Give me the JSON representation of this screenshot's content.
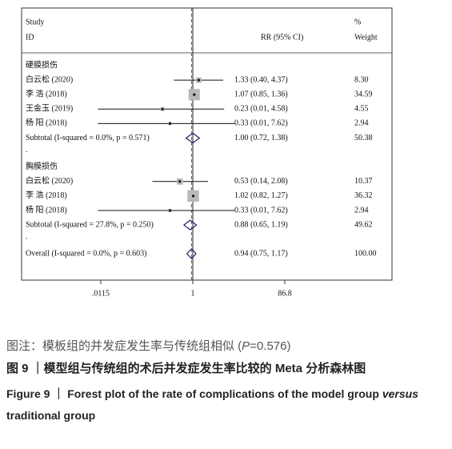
{
  "chart_data": {
    "type": "forest",
    "header": {
      "study": "Study",
      "id": "ID",
      "effect": "RR (95% CI)",
      "pct": "%",
      "weight": "Weight"
    },
    "groups": [
      {
        "title": "硬膜损伤",
        "studies": [
          {
            "label": "白云松 (2020)",
            "rr": 1.33,
            "lo": 0.4,
            "hi": 4.37,
            "ci_label": "1.33 (0.40, 4.37)",
            "weight": 8.3,
            "weight_label": "8.30"
          },
          {
            "label": "李 浩 (2018)",
            "rr": 1.07,
            "lo": 0.85,
            "hi": 1.36,
            "ci_label": "1.07 (0.85, 1.36)",
            "weight": 34.59,
            "weight_label": "34.59"
          },
          {
            "label": "王金玉 (2019)",
            "rr": 0.23,
            "lo": 0.01,
            "hi": 4.58,
            "ci_label": "0.23 (0.01, 4.58)",
            "weight": 4.55,
            "weight_label": "4.55"
          },
          {
            "label": "杨 阳 (2018)",
            "rr": 0.33,
            "lo": 0.01,
            "hi": 7.62,
            "ci_label": "0.33 (0.01, 7.62)",
            "weight": 2.94,
            "weight_label": "2.94"
          }
        ],
        "subtotal": {
          "label": "Subtotal  (I-squared = 0.0%, p = 0.571)",
          "rr": 1.0,
          "lo": 0.72,
          "hi": 1.38,
          "ci_label": "1.00 (0.72, 1.38)",
          "weight": 50.38,
          "weight_label": "50.38"
        },
        "separator": "."
      },
      {
        "title": "胸膜损伤",
        "studies": [
          {
            "label": "白云松 (2020)",
            "rr": 0.53,
            "lo": 0.14,
            "hi": 2.08,
            "ci_label": "0.53 (0.14, 2.08)",
            "weight": 10.37,
            "weight_label": "10.37"
          },
          {
            "label": "李 浩 (2018)",
            "rr": 1.02,
            "lo": 0.82,
            "hi": 1.27,
            "ci_label": "1.02 (0.82, 1.27)",
            "weight": 36.32,
            "weight_label": "36.32"
          },
          {
            "label": "杨 阳 (2018)",
            "rr": 0.33,
            "lo": 0.01,
            "hi": 7.62,
            "ci_label": "0.33 (0.01, 7.62)",
            "weight": 2.94,
            "weight_label": "2.94"
          }
        ],
        "subtotal": {
          "label": "Subtotal  (I-squared = 27.8%, p = 0.250)",
          "rr": 0.88,
          "lo": 0.65,
          "hi": 1.19,
          "ci_label": "0.88 (0.65, 1.19)",
          "weight": 49.62,
          "weight_label": "49.62"
        },
        "separator": "."
      }
    ],
    "overall": {
      "label": "Overall  (I-squared = 0.0%, p = 0.603)",
      "rr": 0.94,
      "lo": 0.75,
      "hi": 1.17,
      "ci_label": "0.94 (0.75, 1.17)",
      "weight": 100,
      "weight_label": "100.00"
    },
    "xlim": [
      0.0115,
      86.8
    ],
    "xticks": [
      {
        "value": 0.0115,
        "label": ".0115"
      },
      1,
      86.8
    ],
    "log_x": true,
    "null_line": 1,
    "box_color": "#b9b9b9",
    "point_color": "#111111",
    "diamond_color": "#1c1c6b",
    "overall_line_color": "#c0392b"
  },
  "captions": {
    "note": {
      "text": "图注：模板组的并发症发生率与传统组相似 (",
      "p": "P",
      "rest": "=0.576)"
    },
    "title_cn": "图 9 ｜模型组与传统组的术后并发症发生率比较的 Meta 分析森林图",
    "title_en": {
      "text": "Figure 9 ｜ Forest plot of the rate of complications of the model group ",
      "italic": "versus",
      "rest": " traditional group"
    }
  }
}
